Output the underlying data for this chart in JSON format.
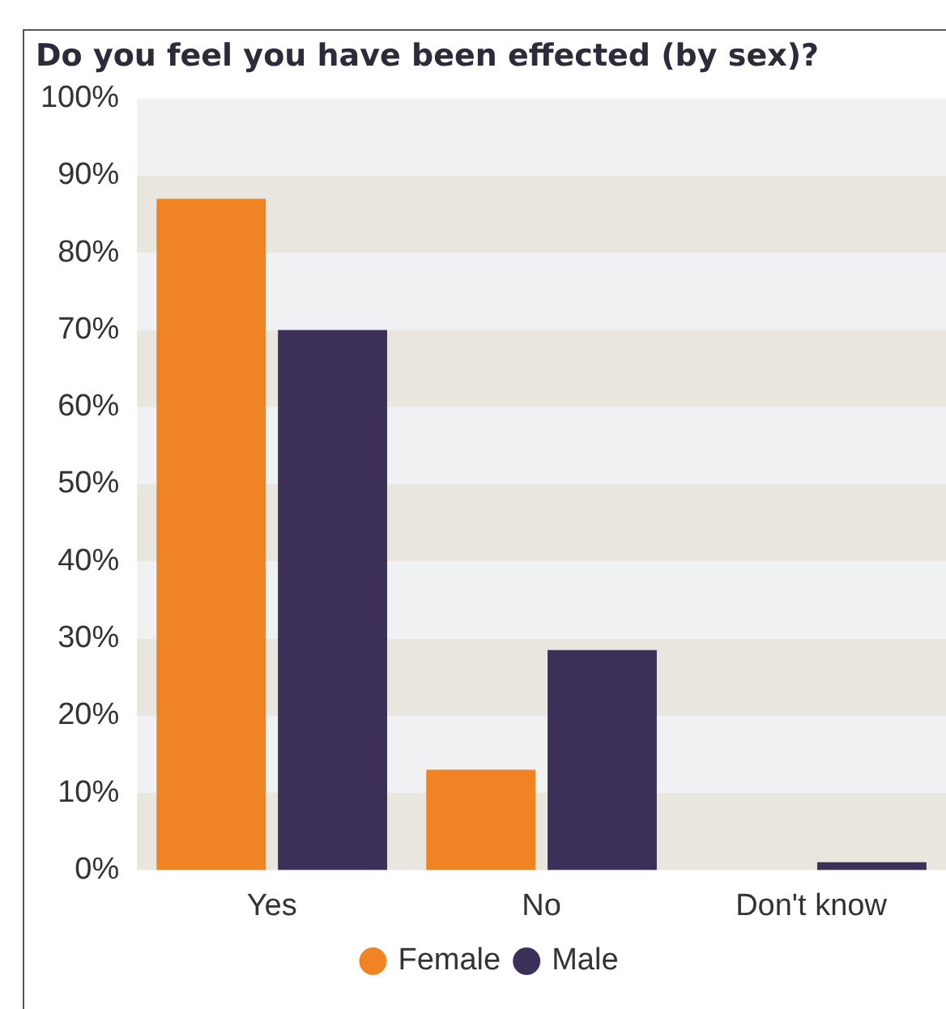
{
  "chart_data": {
    "type": "bar",
    "title": "Do you feel you have been effected (by sex)?",
    "categories": [
      "Yes",
      "No",
      "Don't know"
    ],
    "series": [
      {
        "name": "Female",
        "color": "#f08323",
        "values": [
          87,
          13,
          0
        ]
      },
      {
        "name": "Male",
        "color": "#3d3058",
        "values": [
          70,
          28.5,
          1
        ]
      }
    ],
    "ylim": [
      0,
      100
    ],
    "yticks": [
      {
        "value": 0,
        "label": "0%"
      },
      {
        "value": 10,
        "label": "10%"
      },
      {
        "value": 20,
        "label": "20%"
      },
      {
        "value": 30,
        "label": "30%"
      },
      {
        "value": 40,
        "label": "40%"
      },
      {
        "value": 50,
        "label": "50%"
      },
      {
        "value": 60,
        "label": "60%"
      },
      {
        "value": 70,
        "label": "70%"
      },
      {
        "value": 80,
        "label": "80%"
      },
      {
        "value": 90,
        "label": "90%"
      },
      {
        "value": 100,
        "label": "100%"
      }
    ],
    "legend": "bottom",
    "marker": "circle"
  }
}
